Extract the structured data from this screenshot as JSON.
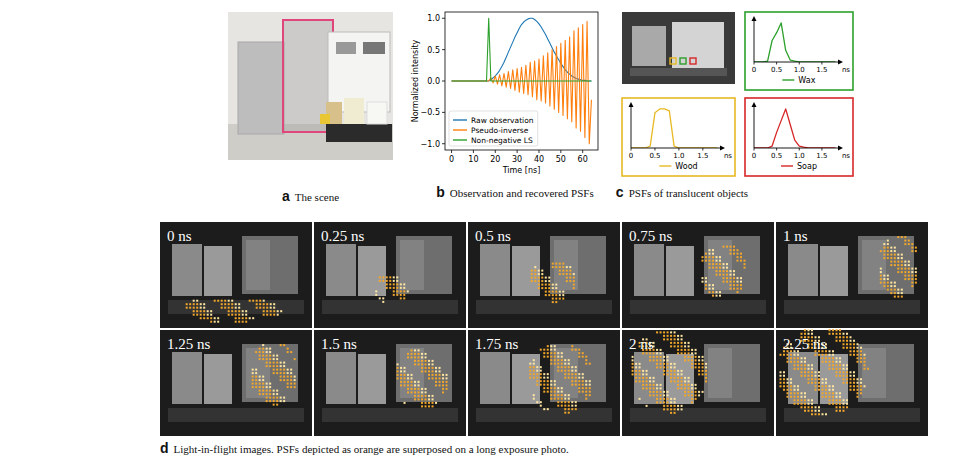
{
  "chart_data": [
    {
      "type": "line",
      "x": [
        0,
        1,
        2,
        3,
        4,
        5,
        6,
        7,
        8,
        9,
        10,
        11,
        12,
        13,
        14,
        15,
        16,
        17,
        18,
        19,
        20,
        21,
        22,
        23,
        24,
        25,
        26,
        27,
        28,
        29,
        30,
        31,
        32,
        33,
        34,
        35,
        36,
        37,
        38,
        39,
        40,
        41,
        42,
        43,
        44,
        45,
        46,
        47,
        48,
        49,
        50,
        51,
        52,
        53,
        54,
        55,
        56,
        57,
        58,
        59,
        60,
        61,
        62,
        63,
        64
      ],
      "xlim": [
        -3,
        67
      ],
      "xticks": [
        0,
        10,
        20,
        30,
        40,
        50,
        60
      ],
      "ylim": [
        -1.1,
        1.1
      ],
      "yticks": [
        {
          "value": -1,
          "label": "−1.0"
        },
        {
          "value": -0.5,
          "label": "−0.5"
        },
        {
          "value": 0,
          "label": "0.0"
        },
        {
          "value": 0.5,
          "label": "0.5"
        },
        {
          "value": 1,
          "label": "1.0"
        }
      ],
      "x_label": "Time [ns]",
      "y_label": "Normalized intensity",
      "legend": "lower left",
      "series": [
        {
          "name": "Raw observation",
          "color": "#1f77b4",
          "values": [
            0,
            0,
            0,
            0,
            0,
            0,
            0,
            0,
            0,
            0,
            0,
            0,
            0,
            0,
            0,
            0,
            0,
            0,
            0.02,
            0.05,
            0.08,
            0.12,
            0.17,
            0.23,
            0.3,
            0.38,
            0.46,
            0.54,
            0.62,
            0.7,
            0.77,
            0.84,
            0.9,
            0.94,
            0.97,
            0.99,
            1.0,
            1.0,
            0.98,
            0.95,
            0.91,
            0.86,
            0.8,
            0.74,
            0.67,
            0.6,
            0.53,
            0.46,
            0.4,
            0.34,
            0.28,
            0.23,
            0.18,
            0.14,
            0.11,
            0.08,
            0.06,
            0.04,
            0.03,
            0.02,
            0.01,
            0.01,
            0,
            0,
            0
          ]
        },
        {
          "name": "Pseudo-inverse",
          "color": "#ff7f0e",
          "values": [
            0,
            0,
            0,
            0,
            0,
            0,
            0,
            0,
            0,
            0,
            0,
            0,
            0,
            0,
            0,
            0,
            0,
            0,
            0.05,
            -0.03,
            0.08,
            -0.05,
            0.1,
            -0.08,
            0.12,
            -0.1,
            0.15,
            -0.12,
            0.18,
            -0.15,
            0.2,
            -0.18,
            0.22,
            -0.2,
            0.25,
            -0.22,
            0.3,
            -0.25,
            0.32,
            -0.3,
            0.35,
            -0.32,
            0.4,
            -0.35,
            0.45,
            -0.4,
            0.5,
            -0.45,
            0.55,
            -0.5,
            0.6,
            -0.55,
            0.65,
            -0.6,
            0.7,
            -0.65,
            0.8,
            -0.75,
            0.85,
            -0.8,
            0.9,
            -0.9,
            0.95,
            -1.0,
            -0.3
          ]
        },
        {
          "name": "Non-negative LS",
          "color": "#2ca02c",
          "values": [
            0,
            0,
            0,
            0,
            0,
            0,
            0,
            0,
            0,
            0,
            0,
            0,
            0,
            0,
            0,
            0,
            0,
            1.0,
            0,
            0,
            0,
            0,
            0,
            0,
            0,
            0,
            0,
            0,
            0,
            0,
            0,
            0,
            0,
            0,
            0,
            0,
            0,
            0,
            0,
            0,
            0,
            0,
            0,
            0,
            0,
            0,
            0,
            0,
            0,
            0,
            0,
            0,
            0,
            0,
            0,
            0,
            0,
            0,
            0,
            0,
            0,
            0,
            0,
            0,
            0
          ]
        }
      ]
    },
    {
      "type": "line",
      "x": [
        0,
        0.1,
        0.2,
        0.3,
        0.4,
        0.5,
        0.6,
        0.7,
        0.8,
        0.9,
        1.0,
        1.1,
        1.2,
        1.3,
        1.4,
        1.5,
        1.6,
        1.7,
        1.8
      ],
      "xlim": [
        0,
        1.9
      ],
      "xticks": [
        0,
        0.5,
        {
          "value": 1,
          "label": "1.0"
        },
        1.5
      ],
      "x_label": "ns",
      "ylim": [
        0,
        1.1
      ],
      "tick_labels": "x",
      "legend": "lower center",
      "series": [
        {
          "name": "Wax",
          "color": "#2ca02c",
          "values": [
            0,
            0,
            0,
            0.02,
            0.55,
            0.75,
            1.0,
            0.3,
            0.05,
            0.02,
            0,
            0,
            0,
            0,
            0,
            0,
            0,
            0,
            0
          ]
        }
      ]
    },
    {
      "type": "line",
      "x": [
        0,
        0.1,
        0.2,
        0.3,
        0.4,
        0.5,
        0.6,
        0.7,
        0.8,
        0.9,
        1.0,
        1.1,
        1.2,
        1.3,
        1.4,
        1.5,
        1.6,
        1.7,
        1.8
      ],
      "xlim": [
        0,
        1.9
      ],
      "xticks": [
        0,
        0.5,
        {
          "value": 1,
          "label": "1.0"
        },
        1.5
      ],
      "x_label": "ns",
      "ylim": [
        0,
        1.1
      ],
      "tick_labels": "x",
      "legend": "lower center",
      "series": [
        {
          "name": "Wood",
          "color": "#e8b923",
          "values": [
            0,
            0,
            0,
            0,
            0.05,
            0.9,
            1.0,
            1.0,
            0.95,
            0.05,
            0,
            0,
            0,
            0,
            0,
            0,
            0,
            0,
            0
          ]
        }
      ]
    },
    {
      "type": "line",
      "x": [
        0,
        0.1,
        0.2,
        0.3,
        0.4,
        0.5,
        0.6,
        0.7,
        0.8,
        0.9,
        1.0,
        1.1,
        1.2,
        1.3,
        1.4,
        1.5,
        1.6,
        1.7,
        1.8
      ],
      "xlim": [
        0,
        1.9
      ],
      "xticks": [
        0,
        0.5,
        {
          "value": 1,
          "label": "1.0"
        },
        1.5
      ],
      "x_label": "ns",
      "ylim": [
        0,
        1.1
      ],
      "tick_labels": "x",
      "legend": "lower center",
      "series": [
        {
          "name": "Soap",
          "color": "#d62728",
          "values": [
            0,
            0,
            0,
            0,
            0.05,
            0.4,
            0.7,
            1.0,
            0.6,
            0.2,
            0.05,
            0.02,
            0,
            0,
            0,
            0,
            0,
            0,
            0
          ]
        }
      ]
    }
  ],
  "panels": [
    {
      "letter": "a",
      "caption": "The scene"
    },
    {
      "letter": "b",
      "caption": "Observation and recovered PSFs"
    },
    {
      "letter": "c",
      "caption": "PSFs of translucent objects"
    },
    {
      "letter": "d",
      "caption": "Light-in-flight images. PSFs depicted as orange are superposed on a long exposure photo."
    }
  ],
  "light_in_flight": {
    "frames": [
      "0 ns",
      "0.25 ns",
      "0.5 ns",
      "0.75 ns",
      "1 ns",
      "1.25 ns",
      "1.5 ns",
      "1.75 ns",
      "2 ns",
      "2.25 ns"
    ]
  }
}
